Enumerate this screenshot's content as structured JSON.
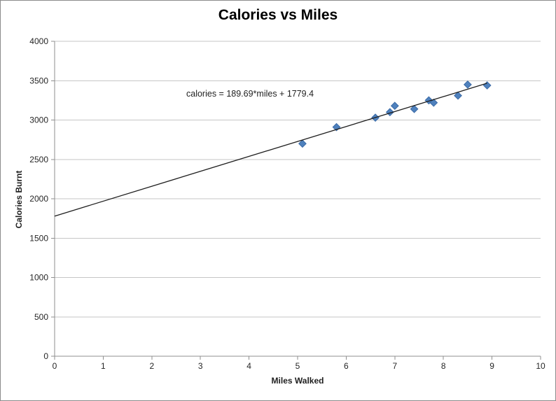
{
  "window": {
    "background_color": "#ffffff",
    "border_color": "#8c8c8c"
  },
  "chart_data": {
    "type": "scatter",
    "title": "Calories vs Miles",
    "xlabel": "Miles Walked",
    "ylabel": "Calories Burnt",
    "annotation": "calories = 189.69*miles + 1779.4",
    "xlim": [
      0,
      10
    ],
    "ylim": [
      0,
      4000
    ],
    "x_ticks": [
      0,
      1,
      2,
      3,
      4,
      5,
      6,
      7,
      8,
      9,
      10
    ],
    "y_ticks": [
      0,
      500,
      1000,
      1500,
      2000,
      2500,
      3000,
      3500,
      4000
    ],
    "grid": "horizontal-only",
    "legend_position": "none",
    "colors": {
      "marker_fill": "#4f81bd",
      "marker_edge": "#3a6aa6",
      "trendline": "#1f1f1f",
      "gridline": "#c6c6c6",
      "axis_line": "#8f8f8f"
    },
    "series": [
      {
        "name": "calories",
        "marker": "diamond",
        "points": [
          {
            "miles": 5.1,
            "calories": 2700
          },
          {
            "miles": 5.8,
            "calories": 2910
          },
          {
            "miles": 6.6,
            "calories": 3030
          },
          {
            "miles": 6.9,
            "calories": 3100
          },
          {
            "miles": 7.0,
            "calories": 3180
          },
          {
            "miles": 7.4,
            "calories": 3140
          },
          {
            "miles": 7.7,
            "calories": 3250
          },
          {
            "miles": 7.8,
            "calories": 3220
          },
          {
            "miles": 8.3,
            "calories": 3310
          },
          {
            "miles": 8.5,
            "calories": 3450
          },
          {
            "miles": 8.9,
            "calories": 3440
          }
        ]
      }
    ],
    "trendline": {
      "type": "linear",
      "slope": 189.69,
      "intercept": 1779.4,
      "x_start": 0,
      "x_end": 8.9
    }
  }
}
